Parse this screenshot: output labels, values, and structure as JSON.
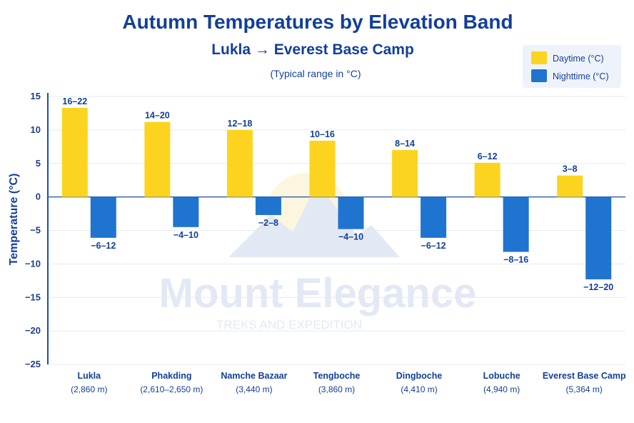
{
  "chart_data": {
    "type": "bar",
    "title": "Autumn Temperatures by Elevation Band",
    "subtitle": "Lukla → Everest Base Camp",
    "note": "(Typical range in °C)",
    "ylabel": "Temperature (°C)",
    "xlabel": "",
    "ylim": [
      -25,
      15
    ],
    "yticks": [
      15,
      10,
      5,
      0,
      -5,
      -10,
      -15,
      -20,
      -25
    ],
    "grid": true,
    "legend_position": "top-right",
    "categories": [
      "Lukla",
      "Phakding",
      "Namche Bazaar",
      "Tengboche",
      "Dingboche",
      "Lobuche",
      "Everest Base Camp"
    ],
    "category_elevations": [
      "(2,860 m)",
      "(2,610–2,650 m)",
      "(3,440 m)",
      "(3,860 m)",
      "(4,410 m)",
      "(4,940 m)",
      "(5,364 m)"
    ],
    "series": [
      {
        "name": "Daytime (°C)",
        "color": "#fcd41f",
        "values": [
          13.3,
          11.2,
          10,
          8.4,
          7,
          5.1,
          3.2
        ],
        "labels": [
          "16–22",
          "14–20",
          "12–18",
          "10–16",
          "8–14",
          "6–12",
          "3–8"
        ]
      },
      {
        "name": "Nighttime (°C)",
        "color": "#1f74cf",
        "values": [
          -6.1,
          -4.5,
          -2.7,
          -4.8,
          -6.1,
          -8.2,
          -12.3
        ],
        "labels": [
          "−6–12",
          "−4–10",
          "−2–8",
          "−4–10",
          "−6–12",
          "−8–16",
          "−12–20"
        ]
      }
    ]
  },
  "watermark": {
    "brand": "Mount Elegance",
    "tagline": "TREKS AND EXPEDITION"
  }
}
